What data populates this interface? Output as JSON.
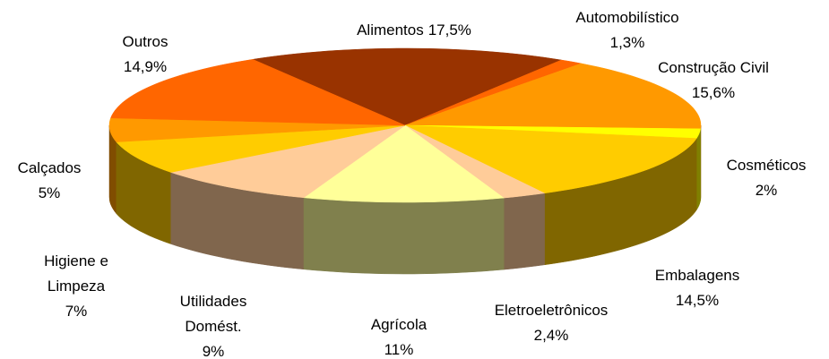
{
  "chart_data": {
    "type": "pie3d",
    "categories": [
      "Alimentos",
      "Automobilístico",
      "Construção Civil",
      "Cosméticos",
      "Embalagens",
      "Eletroeletrônicos",
      "Agrícola",
      "Utilidades Domést.",
      "Higiene e Limpeza",
      "Calçados",
      "Outros"
    ],
    "values": [
      17.5,
      1.3,
      15.6,
      2,
      14.5,
      2.4,
      11,
      9,
      7,
      5,
      14.9
    ],
    "value_labels": [
      "17,5%",
      "1,3%",
      "15,6%",
      "2%",
      "14,5%",
      "2,4%",
      "11%",
      "9%",
      "7%",
      "5%",
      "14,9%"
    ],
    "colors": [
      "#993300",
      "#FF6600",
      "#FF9900",
      "#FFFF00",
      "#FFCC00",
      "#FFCC99",
      "#FFFF99",
      "#FFCC99",
      "#FFCC00",
      "#FF9900",
      "#FF6600"
    ]
  }
}
